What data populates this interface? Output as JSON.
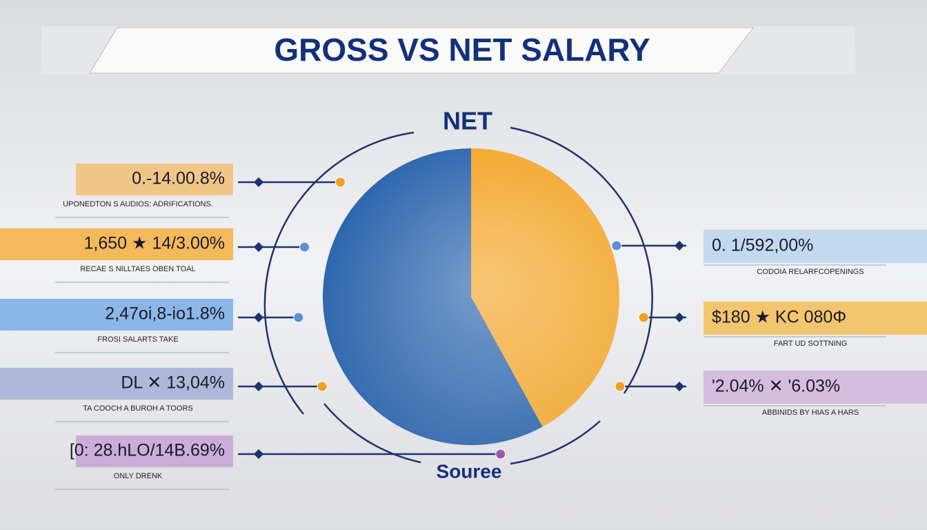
{
  "chart_data": {
    "type": "pie",
    "title": "GROSS VS NET SALARY",
    "top_label": "NET",
    "bottom_label": "Souree",
    "values": [
      42,
      58
    ],
    "colors": [
      "#f3a21f",
      "#1c5aa8"
    ]
  },
  "callouts": {
    "left": [
      {
        "text": "0.-14.00.8%",
        "caption": "UPONEDTON S AUDIOS: ADRIFICATIONS."
      },
      {
        "text": "1,650 ★ 14/3.00%",
        "caption": "RECAE S NILLTAES OBEN TOAL"
      },
      {
        "text": "2,47oi,8-io1.8%",
        "caption": "FROSI SALARTS TAKE"
      },
      {
        "text": "DL ✕ 13,04%",
        "caption": "TA COOCH A BUROH A TOORS"
      },
      {
        "text": "[0: 28.hLO/14B.69%",
        "caption": "ONLY DRENK"
      }
    ],
    "right": [
      {
        "text": "0. 1/592,00%",
        "caption": "CODOIA RELARFCOPENINGS"
      },
      {
        "text": "$180 ★ KC 080Φ",
        "caption": "FART UD SOTTNING"
      },
      {
        "text": "'2.04% ✕ '6.03%",
        "caption": "ABBINIDS BY HIAS A HARS"
      }
    ]
  }
}
